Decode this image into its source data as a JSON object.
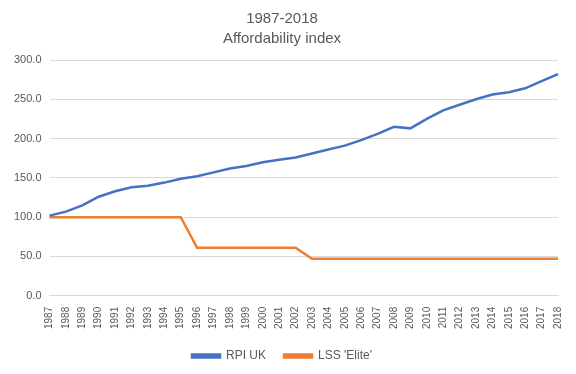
{
  "chart_data": {
    "type": "line",
    "title": "1987-2018",
    "subtitle": "Affordability index",
    "categories": [
      "1987",
      "1988",
      "1989",
      "1990",
      "1991",
      "1992",
      "1993",
      "1994",
      "1995",
      "1996",
      "1997",
      "1998",
      "1999",
      "2000",
      "2001",
      "2002",
      "2003",
      "2004",
      "2005",
      "2006",
      "2007",
      "2008",
      "2009",
      "2010",
      "2011",
      "2012",
      "2013",
      "2014",
      "2015",
      "2016",
      "2017",
      "2018"
    ],
    "series": [
      {
        "name": "RPI UK",
        "color": "#4472c4",
        "values": [
          102,
          107,
          115,
          126,
          133,
          138,
          140,
          144,
          149,
          152,
          157,
          162,
          165,
          170,
          173,
          176,
          181,
          186,
          191,
          198,
          206,
          215,
          213,
          225,
          236,
          243,
          250,
          256,
          259,
          264,
          273,
          282
        ]
      },
      {
        "name": "LSS 'Elite'",
        "color": "#ed7d31",
        "values": [
          100,
          100,
          100,
          100,
          100,
          100,
          100,
          100,
          100,
          61,
          61,
          61,
          61,
          61,
          61,
          61,
          47,
          47,
          47,
          47,
          47,
          47,
          47,
          47,
          47,
          47,
          47,
          47,
          47,
          47,
          47,
          47
        ]
      }
    ],
    "ylim": [
      0,
      300
    ],
    "yticks": [
      {
        "value": 0,
        "label": "0.0"
      },
      {
        "value": 50,
        "label": "50.0"
      },
      {
        "value": 100,
        "label": "100.0"
      },
      {
        "value": 150,
        "label": "150.0"
      },
      {
        "value": 200,
        "label": "200.0"
      },
      {
        "value": 250,
        "label": "250.0"
      },
      {
        "value": 300,
        "label": "300.0"
      }
    ],
    "grid": true,
    "legend": "bottom"
  }
}
